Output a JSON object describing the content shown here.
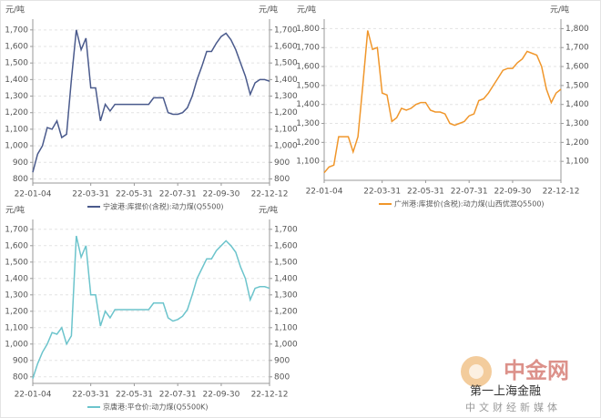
{
  "chart_data": [
    {
      "type": "line",
      "ylabel": "元/吨",
      "y2label": "元/吨",
      "categories": [
        "22-01-04",
        null,
        null,
        null,
        null,
        null,
        null,
        null,
        null,
        null,
        null,
        null,
        "22-03-31",
        null,
        null,
        null,
        null,
        null,
        null,
        null,
        null,
        "22-05-31",
        null,
        null,
        null,
        null,
        null,
        null,
        null,
        null,
        "22-07-31",
        null,
        null,
        null,
        null,
        null,
        null,
        null,
        null,
        "22-09-30",
        null,
        null,
        null,
        null,
        null,
        null,
        null,
        null,
        null,
        "22-12-12"
      ],
      "series": [
        {
          "name": "宁波港:库提价(含税):动力煤(Q5500)",
          "color": "#4a5a8c",
          "values": [
            840,
            950,
            1000,
            1110,
            1100,
            1150,
            1050,
            1070,
            1400,
            1700,
            1580,
            1650,
            1350,
            1350,
            1150,
            1250,
            1210,
            1250,
            1250,
            1250,
            1250,
            1250,
            1250,
            1250,
            1250,
            1290,
            1290,
            1290,
            1200,
            1190,
            1190,
            1200,
            1230,
            1300,
            1400,
            1480,
            1570,
            1570,
            1620,
            1660,
            1680,
            1640,
            1580,
            1500,
            1420,
            1310,
            1380,
            1400,
            1400,
            1390
          ]
        }
      ],
      "ylim": [
        775,
        1765
      ],
      "yticks": [
        800,
        900,
        {
          "value": 1000,
          "label": "1,000"
        },
        {
          "value": 1100,
          "label": "1,100"
        },
        {
          "value": 1200,
          "label": "1,200"
        },
        {
          "value": 1300,
          "label": "1,300"
        },
        {
          "value": 1400,
          "label": "1,400"
        },
        {
          "value": 1500,
          "label": "1,500"
        },
        {
          "value": 1600,
          "label": "1,600"
        },
        {
          "value": 1700,
          "label": "1,700"
        }
      ],
      "y2lim": [
        775,
        1765
      ],
      "y2ticks": [
        800,
        900,
        {
          "value": 1000,
          "label": "1,000"
        },
        {
          "value": 1100,
          "label": "1,100"
        },
        {
          "value": 1200,
          "label": "1,200"
        },
        {
          "value": 1300,
          "label": "1,300"
        },
        {
          "value": 1400,
          "label": "1,400"
        },
        {
          "value": 1500,
          "label": "1,500"
        },
        {
          "value": 1600,
          "label": "1,600"
        },
        {
          "value": 1700,
          "label": "1,700"
        }
      ],
      "grid": true
    },
    {
      "type": "line",
      "ylabel": "元/吨",
      "y2label": "元/吨",
      "categories": [
        "22-01-04",
        null,
        null,
        null,
        null,
        null,
        null,
        null,
        null,
        null,
        null,
        null,
        "22-03-31",
        null,
        null,
        null,
        null,
        null,
        null,
        null,
        null,
        "22-05-31",
        null,
        null,
        null,
        null,
        null,
        null,
        null,
        null,
        "22-07-31",
        null,
        null,
        null,
        null,
        null,
        null,
        null,
        null,
        "22-09-30",
        null,
        null,
        null,
        null,
        null,
        null,
        null,
        null,
        null,
        "22-12-12"
      ],
      "series": [
        {
          "name": "广州港:库提价(含税):动力煤(山西优混Q5500)",
          "color": "#f0962a",
          "values": [
            1040,
            1070,
            1080,
            1230,
            1230,
            1230,
            1150,
            1230,
            1500,
            1790,
            1690,
            1700,
            1460,
            1450,
            1310,
            1330,
            1380,
            1370,
            1380,
            1400,
            1410,
            1410,
            1370,
            1360,
            1360,
            1350,
            1300,
            1290,
            1300,
            1310,
            1340,
            1350,
            1420,
            1430,
            1460,
            1500,
            1540,
            1580,
            1590,
            1590,
            1620,
            1640,
            1680,
            1670,
            1660,
            1600,
            1480,
            1410,
            1460,
            1480
          ]
        }
      ],
      "ylim": [
        1000,
        1850
      ],
      "yticks": [
        {
          "value": 1100,
          "label": "1,100"
        },
        {
          "value": 1200,
          "label": "1,200"
        },
        {
          "value": 1300,
          "label": "1,300"
        },
        {
          "value": 1400,
          "label": "1,400"
        },
        {
          "value": 1500,
          "label": "1,500"
        },
        {
          "value": 1600,
          "label": "1,600"
        },
        {
          "value": 1700,
          "label": "1,700"
        },
        {
          "value": 1800,
          "label": "1,800"
        }
      ],
      "y2lim": [
        1000,
        1850
      ],
      "y2ticks": [
        {
          "value": 1100,
          "label": "1,100"
        },
        {
          "value": 1200,
          "label": "1,200"
        },
        {
          "value": 1300,
          "label": "1,300"
        },
        {
          "value": 1400,
          "label": "1,400"
        },
        {
          "value": 1500,
          "label": "1,500"
        },
        {
          "value": 1600,
          "label": "1,600"
        },
        {
          "value": 1700,
          "label": "1,700"
        },
        {
          "value": 1800,
          "label": "1,800"
        }
      ],
      "grid": true
    },
    {
      "type": "line",
      "ylabel": "元/吨",
      "y2label": "元/吨",
      "categories": [
        "22-01-04",
        null,
        null,
        null,
        null,
        null,
        null,
        null,
        null,
        null,
        null,
        null,
        "22-03-31",
        null,
        null,
        null,
        null,
        null,
        null,
        null,
        null,
        "22-05-31",
        null,
        null,
        null,
        null,
        null,
        null,
        null,
        null,
        "22-07-31",
        null,
        null,
        null,
        null,
        null,
        null,
        null,
        null,
        "22-09-30",
        null,
        null,
        null,
        null,
        null,
        null,
        null,
        null,
        null,
        "22-12-12"
      ],
      "series": [
        {
          "name": "京唐港:平仓价:动力煤(Q5500K)",
          "color": "#6cc4cc",
          "values": [
            790,
            880,
            950,
            1000,
            1070,
            1060,
            1100,
            1000,
            1050,
            1660,
            1530,
            1600,
            1300,
            1300,
            1110,
            1200,
            1160,
            1210,
            1210,
            1210,
            1210,
            1210,
            1210,
            1210,
            1210,
            1250,
            1250,
            1250,
            1160,
            1140,
            1150,
            1170,
            1210,
            1300,
            1400,
            1460,
            1520,
            1520,
            1570,
            1600,
            1630,
            1600,
            1560,
            1470,
            1400,
            1270,
            1340,
            1350,
            1350,
            1340
          ]
        }
      ],
      "ylim": [
        760,
        1760
      ],
      "yticks": [
        800,
        900,
        {
          "value": 1000,
          "label": "1,000"
        },
        {
          "value": 1100,
          "label": "1,100"
        },
        {
          "value": 1200,
          "label": "1,200"
        },
        {
          "value": 1300,
          "label": "1,300"
        },
        {
          "value": 1400,
          "label": "1,400"
        },
        {
          "value": 1500,
          "label": "1,500"
        },
        {
          "value": 1600,
          "label": "1,600"
        },
        {
          "value": 1700,
          "label": "1,700"
        }
      ],
      "y2lim": [
        760,
        1760
      ],
      "y2ticks": [
        800,
        900,
        {
          "value": 1000,
          "label": "1,000"
        },
        {
          "value": 1100,
          "label": "1,100"
        },
        {
          "value": 1200,
          "label": "1,200"
        },
        {
          "value": 1300,
          "label": "1,300"
        },
        {
          "value": 1400,
          "label": "1,400"
        },
        {
          "value": 1500,
          "label": "1,500"
        },
        {
          "value": 1600,
          "label": "1,600"
        },
        {
          "value": 1700,
          "label": "1,700"
        }
      ],
      "grid": true
    }
  ],
  "watermark": {
    "brand": "中金网",
    "lines": [
      "第一上海金融",
      "中文财经新媒体"
    ]
  }
}
